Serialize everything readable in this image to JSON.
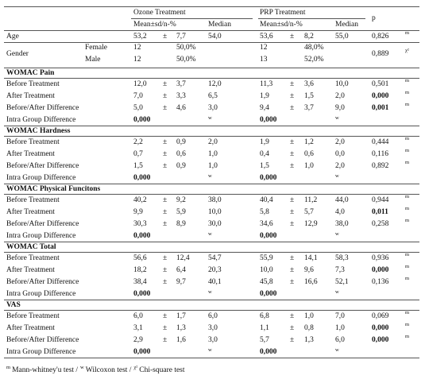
{
  "header": {
    "ozone": "Ozone Treatment",
    "prp": "PRP Treatment",
    "p": "p",
    "ozone_mean": "Mean±sd/n-%",
    "ozone_median": "Median",
    "prp_mean": "Mean±sd/n-%",
    "prp_median": "Median"
  },
  "age": {
    "label": "Age",
    "ozone": [
      "53,2",
      "±",
      "7,7"
    ],
    "ozone_median": "54,0",
    "prp": [
      "53,6",
      "±",
      "8,2"
    ],
    "prp_median": "55,0",
    "p": "0,826",
    "test": "m"
  },
  "gender": {
    "label": "Gender",
    "rows": [
      {
        "label": "Female",
        "ozone": [
          "12",
          "50,0%"
        ],
        "prp": [
          "12",
          "48,0%"
        ]
      },
      {
        "label": "Male",
        "ozone": [
          "12",
          "50,0%"
        ],
        "prp": [
          "13",
          "52,0%"
        ]
      }
    ],
    "p": "0,889",
    "test": "χ²"
  },
  "sections": [
    {
      "title": "WOMAC Pain",
      "rows": [
        {
          "label": "Before Treatment",
          "ozone": [
            "12,0",
            "±",
            "3,7"
          ],
          "ozone_median": "12,0",
          "prp": [
            "11,3",
            "±",
            "3,6"
          ],
          "prp_median": "10,0",
          "p": "0,501",
          "bold": false,
          "test": "m"
        },
        {
          "label": "After Treatment",
          "ozone": [
            "7,0",
            "±",
            "3,3"
          ],
          "ozone_median": "6,5",
          "prp": [
            "1,9",
            "±",
            "1,5"
          ],
          "prp_median": "2,0",
          "p": "0,000",
          "bold": true,
          "test": "m"
        },
        {
          "label": "Before/After Difference",
          "ozone": [
            "5,0",
            "±",
            "4,6"
          ],
          "ozone_median": "3,0",
          "prp": [
            "9,4",
            "±",
            "3,7"
          ],
          "prp_median": "9,0",
          "p": "0,001",
          "bold": true,
          "test": "m"
        }
      ],
      "intra": {
        "label": "Intra Group Difference",
        "ozone_p": "0,000",
        "ozone_test": "w",
        "prp_p": "0,000",
        "prp_test": "w"
      }
    },
    {
      "title": "WOMAC Hardness",
      "rows": [
        {
          "label": "Before Treatment",
          "ozone": [
            "2,2",
            "±",
            "0,9"
          ],
          "ozone_median": "2,0",
          "prp": [
            "1,9",
            "±",
            "1,2"
          ],
          "prp_median": "2,0",
          "p": "0,444",
          "bold": false,
          "test": "m"
        },
        {
          "label": "After Treatment",
          "ozone": [
            "0,7",
            "±",
            "0,6"
          ],
          "ozone_median": "1,0",
          "prp": [
            "0,4",
            "±",
            "0,6"
          ],
          "prp_median": "0,0",
          "p": "0,116",
          "bold": false,
          "test": "m"
        },
        {
          "label": "Before/After Difference",
          "ozone": [
            "1,5",
            "±",
            "0,9"
          ],
          "ozone_median": "1,0",
          "prp": [
            "1,5",
            "±",
            "1,0"
          ],
          "prp_median": "2,0",
          "p": "0,892",
          "bold": false,
          "test": "m"
        }
      ],
      "intra": {
        "label": "Intra Group Difference",
        "ozone_p": "0,000",
        "ozone_test": "w",
        "prp_p": "0,000",
        "prp_test": "w"
      }
    },
    {
      "title": "WOMAC Physical Funcitons",
      "rows": [
        {
          "label": "Before Treatment",
          "ozone": [
            "40,2",
            "±",
            "9,2"
          ],
          "ozone_median": "38,0",
          "prp": [
            "40,4",
            "±",
            "11,2"
          ],
          "prp_median": "44,0",
          "p": "0,944",
          "bold": false,
          "test": "m"
        },
        {
          "label": "After Treatment",
          "ozone": [
            "9,9",
            "±",
            "5,9"
          ],
          "ozone_median": "10,0",
          "prp": [
            "5,8",
            "±",
            "5,7"
          ],
          "prp_median": "4,0",
          "p": "0,011",
          "bold": true,
          "test": "m"
        },
        {
          "label": "Before/After Difference",
          "ozone": [
            "30,3",
            "±",
            "8,9"
          ],
          "ozone_median": "30,0",
          "prp": [
            "34,6",
            "±",
            "12,9"
          ],
          "prp_median": "38,0",
          "p": "0,258",
          "bold": false,
          "test": "m"
        }
      ],
      "intra": {
        "label": "Intra Group Difference",
        "ozone_p": "0,000",
        "ozone_test": "w",
        "prp_p": "0,000",
        "prp_test": "w"
      }
    },
    {
      "title": "WOMAC Total",
      "rows": [
        {
          "label": "Before Treatment",
          "ozone": [
            "56,6",
            "±",
            "12,4"
          ],
          "ozone_median": "54,7",
          "prp": [
            "55,9",
            "±",
            "14,1"
          ],
          "prp_median": "58,3",
          "p": "0,936",
          "bold": false,
          "test": "m"
        },
        {
          "label": "After Treatment",
          "ozone": [
            "18,2",
            "±",
            "6,4"
          ],
          "ozone_median": "20,3",
          "prp": [
            "10,0",
            "±",
            "9,6"
          ],
          "prp_median": "7,3",
          "p": "0,000",
          "bold": true,
          "test": "m"
        },
        {
          "label": "Before/After Difference",
          "ozone": [
            "38,4",
            "±",
            "9,7"
          ],
          "ozone_median": "40,1",
          "prp": [
            "45,8",
            "±",
            "16,6"
          ],
          "prp_median": "52,1",
          "p": "0,136",
          "bold": false,
          "test": "m"
        }
      ],
      "intra": {
        "label": "Intra Group Difference",
        "ozone_p": "0,000",
        "ozone_test": "w",
        "prp_p": "0,000",
        "prp_test": "w"
      }
    },
    {
      "title": "VAS",
      "rows": [
        {
          "label": "Before Treatment",
          "ozone": [
            "6,0",
            "±",
            "1,7"
          ],
          "ozone_median": "6,0",
          "prp": [
            "6,8",
            "±",
            "1,0"
          ],
          "prp_median": "7,0",
          "p": "0,069",
          "bold": false,
          "test": "m"
        },
        {
          "label": "After Treatment",
          "ozone": [
            "3,1",
            "±",
            "1,3"
          ],
          "ozone_median": "3,0",
          "prp": [
            "1,1",
            "±",
            "0,8"
          ],
          "prp_median": "1,0",
          "p": "0,000",
          "bold": true,
          "test": "m"
        },
        {
          "label": "Before/After Difference",
          "ozone": [
            "2,9",
            "±",
            "1,6"
          ],
          "ozone_median": "3,0",
          "prp": [
            "5,7",
            "±",
            "1,3"
          ],
          "prp_median": "6,0",
          "p": "0,000",
          "bold": true,
          "test": "m"
        }
      ],
      "intra": {
        "label": "Intra Group Difference",
        "ozone_p": "0,000",
        "ozone_test": "w",
        "prp_p": "0,000",
        "prp_test": "w"
      }
    }
  ],
  "footer": [
    {
      "mark": "m",
      "text": "Mann-whitney'u test /"
    },
    {
      "mark": "w",
      "text": "Wilcoxon test /"
    },
    {
      "mark": "χ²",
      "text": "Chi-square test"
    }
  ]
}
